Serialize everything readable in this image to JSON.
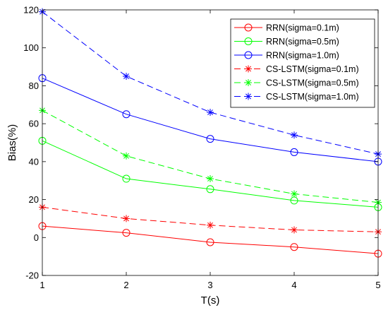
{
  "chart_data": {
    "type": "line",
    "title": "",
    "xlabel": "T(s)",
    "ylabel": "Bias(%)",
    "xlim": [
      1,
      5
    ],
    "ylim": [
      -20,
      120
    ],
    "x": [
      1,
      2,
      3,
      4,
      5
    ],
    "xticks": [
      "1",
      "2",
      "3",
      "4",
      "5"
    ],
    "yticks": [
      "-20",
      "0",
      "20",
      "40",
      "60",
      "80",
      "100",
      "120"
    ],
    "grid": false,
    "legend_position": "top-right",
    "series": [
      {
        "name": "RRN(sigma=0.1m)",
        "color": "#ff0000",
        "line": "solid",
        "marker": "circle",
        "values": [
          6,
          2.5,
          -2.5,
          -5,
          -8.5
        ]
      },
      {
        "name": "RRN(sigma=0.5m)",
        "color": "#00ff00",
        "line": "solid",
        "marker": "circle",
        "values": [
          51,
          31,
          25.5,
          19.5,
          16
        ]
      },
      {
        "name": "RRN(sigma=1.0m)",
        "color": "#0000ff",
        "line": "solid",
        "marker": "circle",
        "values": [
          84,
          65,
          52,
          45,
          40
        ]
      },
      {
        "name": "CS-LSTM(sigma=0.1m)",
        "color": "#ff0000",
        "line": "dashed",
        "marker": "star",
        "values": [
          16,
          10,
          6.5,
          4,
          3
        ]
      },
      {
        "name": "CS-LSTM(sigma=0.5m)",
        "color": "#00ff00",
        "line": "dashed",
        "marker": "star",
        "values": [
          67,
          43,
          31,
          23,
          18.5
        ]
      },
      {
        "name": "CS-LSTM(sigma=1.0m)",
        "color": "#0000ff",
        "line": "dashed",
        "marker": "star",
        "values": [
          119,
          85,
          66,
          54,
          44
        ]
      }
    ]
  }
}
